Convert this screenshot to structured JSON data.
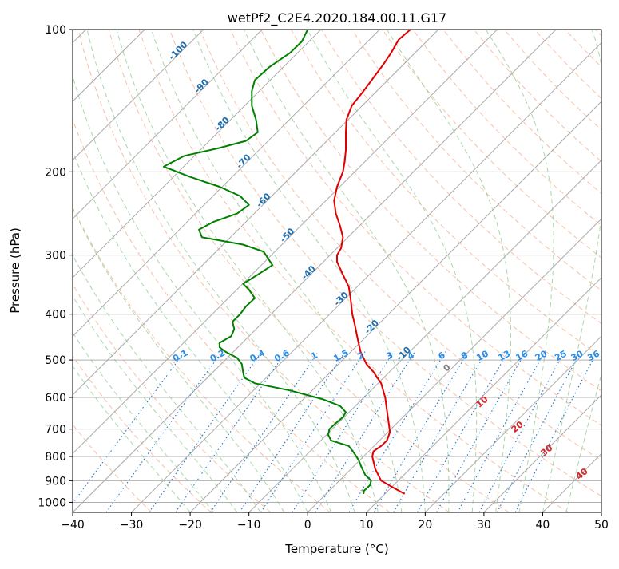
{
  "chart_data": {
    "type": "line",
    "title": "wetPf2_C2E4.2020.184.00.11.G17",
    "xlabel": "Temperature (°C)",
    "ylabel": "Pressure (hPa)",
    "xlim": [
      -40,
      50
    ],
    "ylim": [
      1050,
      100
    ],
    "y_scale": "log",
    "grid": true,
    "x_ticks": [
      "−40",
      "−30",
      "−20",
      "−10",
      "0",
      "10",
      "20",
      "30",
      "40",
      "50"
    ],
    "y_ticks": [
      "100",
      "200",
      "300",
      "400",
      "500",
      "600",
      "700",
      "800",
      "900",
      "1000"
    ],
    "series": [
      {
        "color": "#e00000",
        "points": [
          [
            16.5,
            960
          ],
          [
            14.5,
            930
          ],
          [
            12.5,
            900
          ],
          [
            11.5,
            850
          ],
          [
            11.0,
            800
          ],
          [
            11.2,
            780
          ],
          [
            12.5,
            760
          ],
          [
            13.5,
            740
          ],
          [
            14.0,
            710
          ],
          [
            13.8,
            680
          ],
          [
            13.5,
            640
          ],
          [
            13.2,
            600
          ],
          [
            12.5,
            560
          ],
          [
            11.2,
            530
          ],
          [
            10.0,
            510
          ],
          [
            9.0,
            480
          ],
          [
            8.5,
            450
          ],
          [
            8.0,
            420
          ],
          [
            7.6,
            400
          ],
          [
            7.3,
            370
          ],
          [
            7.0,
            350
          ],
          [
            6.0,
            330
          ],
          [
            5.0,
            310
          ],
          [
            5.0,
            300
          ],
          [
            5.7,
            290
          ],
          [
            6.0,
            275
          ],
          [
            5.5,
            260
          ],
          [
            4.8,
            245
          ],
          [
            4.5,
            230
          ],
          [
            5.0,
            215
          ],
          [
            6.0,
            200
          ],
          [
            6.3,
            190
          ],
          [
            6.5,
            180
          ],
          [
            6.5,
            165
          ],
          [
            6.6,
            155
          ],
          [
            7.5,
            145
          ],
          [
            9.5,
            135
          ],
          [
            11.5,
            125
          ],
          [
            13.0,
            118
          ],
          [
            14.2,
            112
          ],
          [
            15.5,
            105
          ],
          [
            17.5,
            100
          ]
        ]
      },
      {
        "color": "#008000",
        "points": [
          [
            9.5,
            960
          ],
          [
            9.6,
            945
          ],
          [
            10.6,
            920
          ],
          [
            10.8,
            900
          ],
          [
            9.8,
            875
          ],
          [
            9.2,
            845
          ],
          [
            8.7,
            815
          ],
          [
            8.0,
            790
          ],
          [
            7.0,
            760
          ],
          [
            4.0,
            740
          ],
          [
            3.5,
            720
          ],
          [
            3.7,
            700
          ],
          [
            4.8,
            680
          ],
          [
            6.0,
            660
          ],
          [
            6.5,
            645
          ],
          [
            5.5,
            625
          ],
          [
            2.5,
            605
          ],
          [
            -3.0,
            580
          ],
          [
            -9.0,
            560
          ],
          [
            -10.8,
            545
          ],
          [
            -11.0,
            530
          ],
          [
            -11.2,
            510
          ],
          [
            -12.0,
            495
          ],
          [
            -14.0,
            480
          ],
          [
            -15.0,
            470
          ],
          [
            -15.0,
            460
          ],
          [
            -13.0,
            445
          ],
          [
            -12.5,
            430
          ],
          [
            -12.8,
            415
          ],
          [
            -11.5,
            400
          ],
          [
            -10.5,
            385
          ],
          [
            -9.0,
            370
          ],
          [
            -10.0,
            355
          ],
          [
            -11.0,
            345
          ],
          [
            -8.5,
            330
          ],
          [
            -6.0,
            315
          ],
          [
            -7.5,
            295
          ],
          [
            -11.0,
            285
          ],
          [
            -18.0,
            275
          ],
          [
            -18.5,
            265
          ],
          [
            -16.0,
            255
          ],
          [
            -12.0,
            245
          ],
          [
            -10.0,
            235
          ],
          [
            -11.5,
            225
          ],
          [
            -15.0,
            215
          ],
          [
            -20.0,
            205
          ],
          [
            -24.5,
            195
          ],
          [
            -21.0,
            185
          ],
          [
            -15.0,
            178
          ],
          [
            -10.5,
            172
          ],
          [
            -8.5,
            165
          ],
          [
            -8.8,
            155
          ],
          [
            -9.5,
            145
          ],
          [
            -9.5,
            135
          ],
          [
            -9.0,
            128
          ],
          [
            -6.5,
            120
          ],
          [
            -3.0,
            112
          ],
          [
            -1.0,
            106
          ],
          [
            0.0,
            100
          ]
        ]
      }
    ],
    "temperature_labels": [
      "-100",
      "-90",
      "-80",
      "-70",
      "-60",
      "-50",
      "-40",
      "-30",
      "-20",
      "-10"
    ],
    "mixing_ratio_labels": [
      "0.1",
      "0.2",
      "0.4",
      "0.6",
      "1",
      "1.5",
      "2",
      "3",
      "4",
      "6",
      "8",
      "10",
      "13",
      "16",
      "20",
      "25",
      "30",
      "36"
    ],
    "red_labels": [
      "0",
      "10",
      "20",
      "30",
      "40"
    ]
  },
  "colors": {
    "isotherm": "#aaaaaa",
    "dry_adiabat": "#f4a582",
    "moist_adiabat": "#86c686",
    "mixing_ratio": "#1f77d4",
    "temperature_label": "#1f6fb0",
    "mixing_label": "#2a8ee8",
    "red_label": "#d62728",
    "zero_label": "#808080"
  }
}
